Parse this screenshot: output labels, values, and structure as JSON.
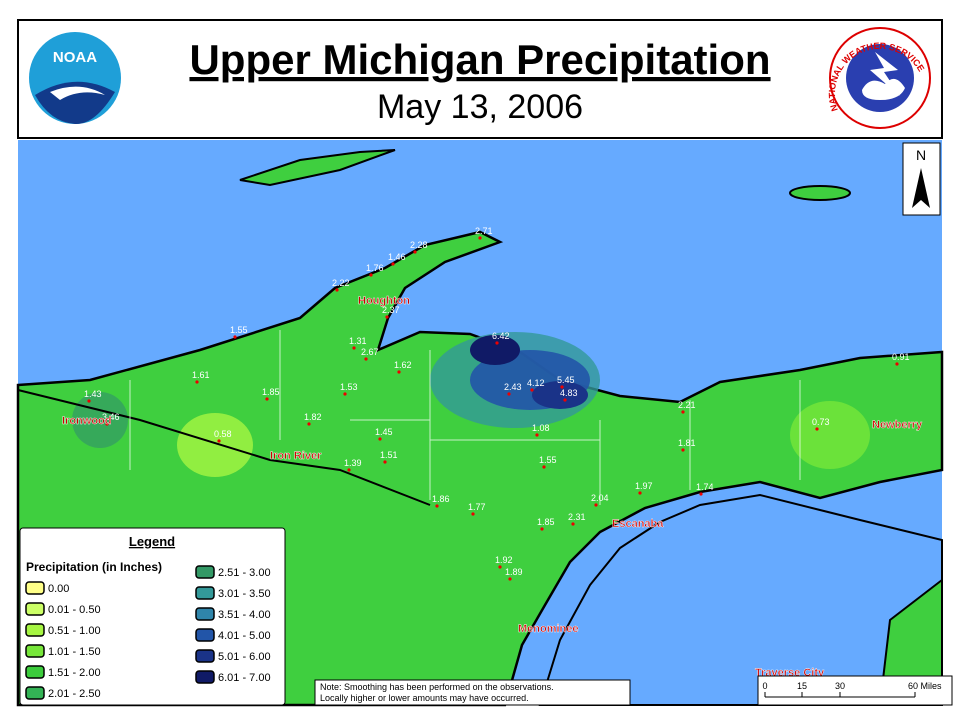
{
  "header": {
    "title": "Upper Michigan Precipitation",
    "date": "May 13, 2006",
    "logos": [
      "NOAA",
      "NATIONAL WEATHER SERVICE"
    ]
  },
  "north": "N",
  "legend": {
    "title": "Legend",
    "subtitle": "Precipitation (in Inches)",
    "items": [
      {
        "label": "0.00",
        "color": "#ffff88"
      },
      {
        "label": "0.01 - 0.50",
        "color": "#ccff66"
      },
      {
        "label": "0.51 - 1.00",
        "color": "#a6f542"
      },
      {
        "label": "1.01 - 1.50",
        "color": "#77e63a"
      },
      {
        "label": "1.51 - 2.00",
        "color": "#3ccc3c"
      },
      {
        "label": "2.01 - 2.50",
        "color": "#33b355"
      },
      {
        "label": "2.51 - 3.00",
        "color": "#339966"
      },
      {
        "label": "3.01 - 3.50",
        "color": "#339999"
      },
      {
        "label": "3.51 - 4.00",
        "color": "#2f85aa"
      },
      {
        "label": "4.01 - 5.00",
        "color": "#2255a8"
      },
      {
        "label": "5.01 - 6.00",
        "color": "#1a3388"
      },
      {
        "label": "6.01 - 7.00",
        "color": "#101a66"
      }
    ]
  },
  "stations": [
    "2.71",
    "2.28",
    "1.46",
    "1.76",
    "2.22",
    "2.37",
    "1.55",
    "1.31",
    "2.67",
    "6.42",
    "1.62",
    "1.61",
    "1.85",
    "1.53",
    "2.43",
    "4.12",
    "5.45",
    "4.83",
    "1.43",
    "3.46",
    "2.21",
    "0.91",
    "1.82",
    "0.58",
    "1.45",
    "1.08",
    "0.73",
    "1.39",
    "1.51",
    "1.55",
    "1.81",
    "1.86",
    "1.77",
    "2.04",
    "1.97",
    "1.74",
    "1.85",
    "2.31",
    "1.92",
    "1.89"
  ],
  "cities": [
    "Houghton",
    "Ironwood",
    "Iron River",
    "Newberry",
    "Escanaba",
    "Menominee",
    "Traverse City"
  ],
  "note": [
    "Note: Smoothing has been performed on the observations.",
    "Locally higher or lower amounts may have occurred."
  ],
  "scale": [
    "0",
    "15",
    "30",
    "60 Miles"
  ]
}
